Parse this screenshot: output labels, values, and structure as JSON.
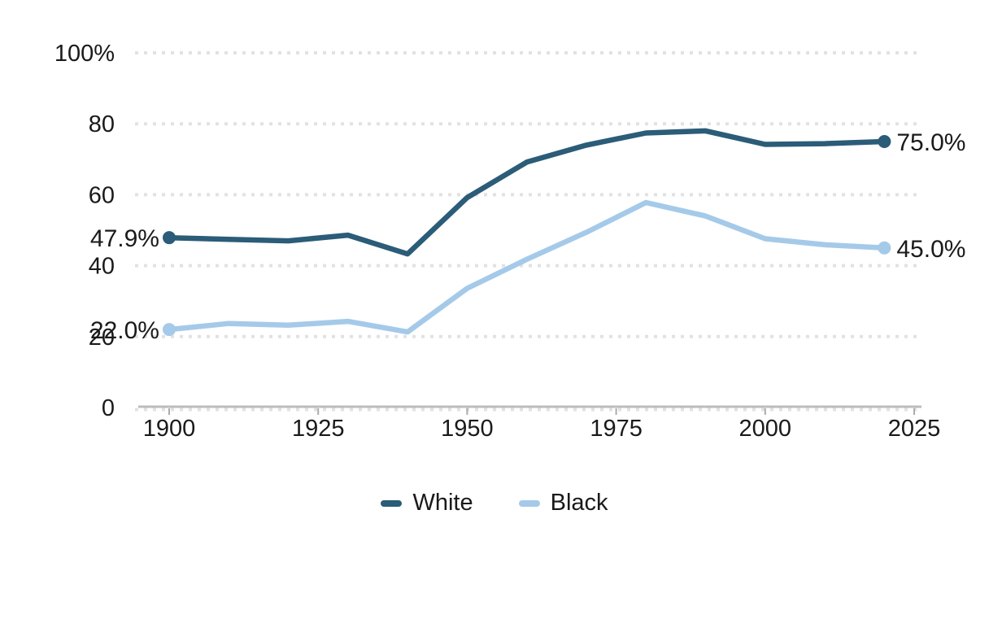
{
  "chart_data": {
    "type": "line",
    "title": "",
    "xlabel": "",
    "ylabel": "",
    "x": [
      1900,
      1910,
      1920,
      1930,
      1940,
      1950,
      1960,
      1970,
      1980,
      1990,
      2000,
      2010,
      2020
    ],
    "series": [
      {
        "name": "White",
        "color": "#2b5c78",
        "values": [
          47.9,
          47.4,
          47.0,
          48.6,
          43.3,
          59.2,
          69.2,
          74.0,
          77.4,
          78.0,
          74.2,
          74.4,
          75.0
        ],
        "start_label": "47.9%",
        "end_label": "75.0%"
      },
      {
        "name": "Black",
        "color": "#a5cae9",
        "values": [
          22.0,
          23.7,
          23.2,
          24.3,
          21.3,
          33.6,
          41.8,
          49.4,
          57.8,
          54.0,
          47.6,
          45.9,
          45.0
        ],
        "start_label": "22.0%",
        "end_label": "45.0%"
      }
    ],
    "xlim": [
      1900,
      2025
    ],
    "ylim": [
      0,
      100
    ],
    "x_ticks": [
      1900,
      1925,
      1950,
      1975,
      2000,
      2025
    ],
    "y_ticks": [
      0,
      20,
      40,
      60,
      80,
      100
    ],
    "y_tick_labels": [
      "0",
      "20",
      "40",
      "60",
      "80",
      "100%"
    ],
    "grid": "horizontal-dotted",
    "legend_position": "bottom"
  },
  "colors": {
    "grid": "#e2e2e2",
    "axis_line": "#bcbcbc",
    "tick_mark": "#ababab",
    "text": "#1a1a1a",
    "background": "#ffffff"
  }
}
